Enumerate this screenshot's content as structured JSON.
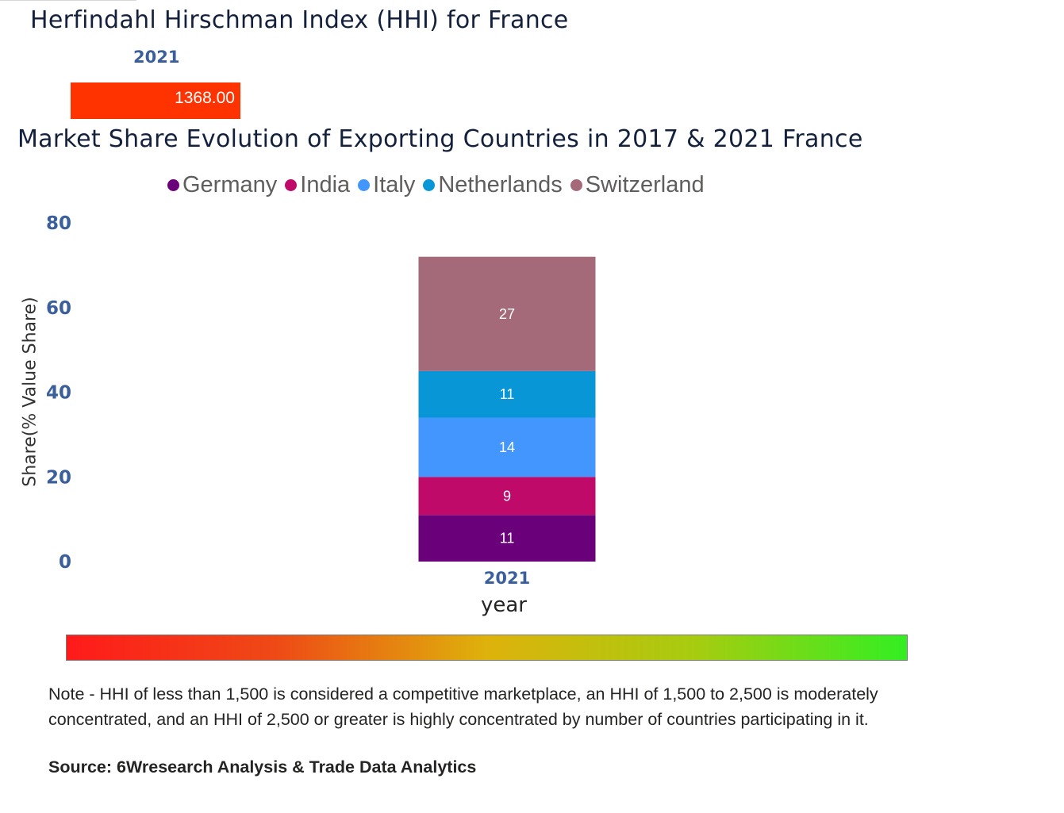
{
  "hhi": {
    "title": "Herfindahl Hirschman Index (HHI) for France",
    "year": "2021",
    "value": "1368.00",
    "bar_color": "#ff3300"
  },
  "chart_data": {
    "type": "bar",
    "stacked": true,
    "title": "Market Share Evolution of Exporting Countries in 2017 & 2021 France",
    "categories": [
      "2021"
    ],
    "series": [
      {
        "name": "Germany",
        "color": "#6a007a",
        "values": [
          11
        ]
      },
      {
        "name": "India",
        "color": "#bf0a6a",
        "values": [
          9
        ]
      },
      {
        "name": "Italy",
        "color": "#4496ff",
        "values": [
          14
        ]
      },
      {
        "name": "Netherlands",
        "color": "#0896d6",
        "values": [
          11
        ]
      },
      {
        "name": "Switzerland",
        "color": "#a46a7a",
        "values": [
          27
        ]
      }
    ],
    "xlabel": "year",
    "ylabel": "Share(% Value Share)",
    "ylim": [
      0,
      80
    ],
    "yticks": [
      "0",
      "20",
      "40",
      "60",
      "80"
    ],
    "legend_position": "top",
    "grid": false
  },
  "scale": {
    "colors": [
      "#ff1a1a",
      "#ee4a16",
      "#deb20b",
      "#a6cc10",
      "#33ee22"
    ]
  },
  "note": "Note - HHI of less than 1,500 is considered a competitive marketplace, an HHI of 1,500 to 2,500 is moderately concentrated, and an HHI of 2,500 or greater is highly concentrated by number of countries participating in it.",
  "source": "Source: 6Wresearch Analysis & Trade Data Analytics"
}
